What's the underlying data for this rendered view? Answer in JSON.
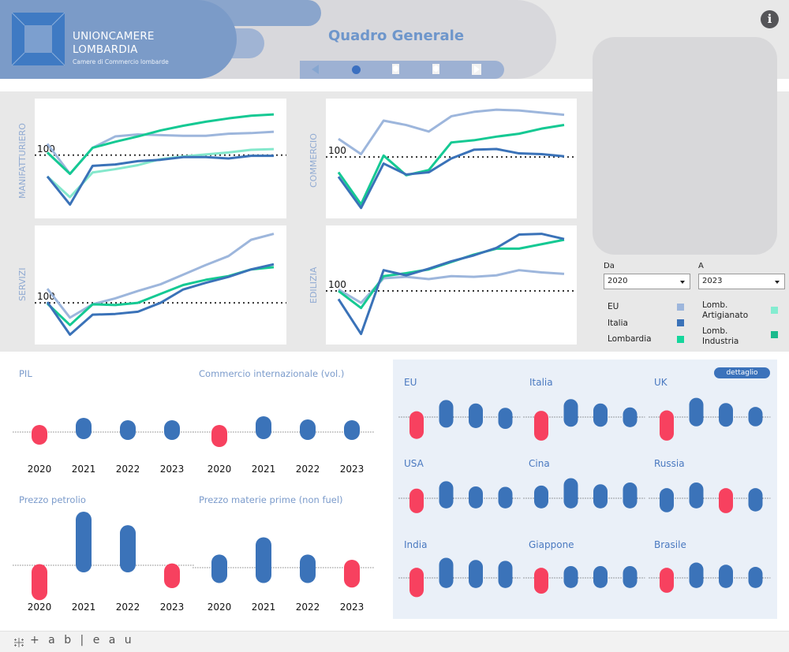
{
  "header": {
    "logo_line1": "UNIONCAMERE",
    "logo_line2": "LOMBARDIA",
    "logo_subtitle": "Camere di Commercio lombarde",
    "title": "Quadro Generale",
    "nav": {
      "prev_icon": "triangle-left",
      "next_icon": "triangle-right",
      "pages": 3,
      "active_page": 1
    },
    "info_icon": "info-circle"
  },
  "colors": {
    "eu": "#9db6dc",
    "italia": "#3a72b8",
    "lombardia": "#15c993",
    "lomb_artigianato": "#84e8cc",
    "lomb_industria": "#1bba8d",
    "negative": "#f7415f",
    "positive": "#3b73b9",
    "accent_title": "#6e96cb"
  },
  "filters": {
    "from_label": "Da",
    "from_value": "2020",
    "to_label": "A",
    "to_value": "2023"
  },
  "legend": [
    {
      "label": "EU",
      "color_key": "eu"
    },
    {
      "label": "Italia",
      "color_key": "italia"
    },
    {
      "label": "Lombardia",
      "color_key": "lombardia"
    },
    {
      "label": "Lomb. Artigianato",
      "color_key": "lomb_artigianato"
    },
    {
      "label": "Lomb. Industria",
      "color_key": "lomb_industria"
    }
  ],
  "bottom": {
    "detail_button": "dettaglio"
  },
  "footer": {
    "brand": "+ a b | e a u"
  },
  "chart_data": [
    {
      "type": "line",
      "title": "MANIFATTURIERO",
      "ylabel": "MANIFATTURIERO",
      "reference_line": 100,
      "reference_label": "100",
      "ylim": [
        55,
        140
      ],
      "series": [
        {
          "name": "EU",
          "color_key": "eu",
          "values": [
            108.5,
            86,
            105.5,
            114,
            115.5,
            115,
            114.5,
            114.5,
            116,
            116.5,
            117.5
          ]
        },
        {
          "name": "Lomb. Artigianato",
          "color_key": "lomb_artigianato",
          "values": [
            84,
            68.5,
            87,
            89.5,
            92.5,
            97,
            99,
            100.5,
            102,
            104,
            104.5
          ]
        },
        {
          "name": "Italia",
          "color_key": "italia",
          "values": [
            84,
            63,
            92,
            93,
            95.5,
            96.5,
            98.5,
            98.5,
            97.5,
            99.5,
            99.5
          ]
        },
        {
          "name": "Lombardia",
          "color_key": "lombardia",
          "values": [
            102,
            86,
            105.5,
            110,
            114,
            118.5,
            122,
            125,
            127.5,
            129.5,
            130.5
          ]
        }
      ]
    },
    {
      "type": "line",
      "title": "COMMERCIO",
      "ylabel": "COMMERCIO",
      "reference_line": 100,
      "reference_label": "100",
      "ylim": [
        60,
        138
      ],
      "series": [
        {
          "name": "EU",
          "color_key": "eu",
          "values": [
            112.5,
            102,
            125,
            122,
            117.5,
            128,
            131,
            132.5,
            132,
            130.5,
            129
          ]
        },
        {
          "name": "Lombardia",
          "color_key": "lombardia",
          "values": [
            89.5,
            67.5,
            101,
            87.5,
            91,
            110,
            111.5,
            114,
            116,
            119.5,
            122
          ]
        },
        {
          "name": "Italia",
          "color_key": "italia",
          "values": [
            86.5,
            65,
            95.5,
            88,
            89.5,
            99,
            105,
            105.5,
            102.5,
            102,
            100.5
          ]
        }
      ]
    },
    {
      "type": "line",
      "title": "SERVIZI",
      "ylabel": "SERVIZI",
      "reference_line": 100,
      "reference_label": "100",
      "ylim": [
        74,
        150
      ],
      "series": [
        {
          "name": "EU",
          "color_key": "eu",
          "values": [
            109.5,
            90,
            99,
            103,
            108,
            112.5,
            119,
            125.5,
            131.5,
            142.5,
            146.5
          ]
        },
        {
          "name": "Lombardia",
          "color_key": "lombardia",
          "values": [
            99.5,
            85,
            99,
            98.5,
            100,
            106,
            112,
            115.5,
            118,
            122.5,
            124
          ]
        },
        {
          "name": "Italia",
          "color_key": "italia",
          "values": [
            100.5,
            78.5,
            92,
            92.5,
            94,
            100,
            109,
            113.5,
            117.5,
            122.5,
            126
          ]
        }
      ]
    },
    {
      "type": "line",
      "title": "EDILIZIA",
      "ylabel": "EDILIZIA",
      "reference_line": 100,
      "reference_label": "100",
      "ylim": [
        66,
        142
      ],
      "series": [
        {
          "name": "EU",
          "color_key": "eu",
          "values": [
            101,
            92,
            108.5,
            109.5,
            108,
            110,
            109.5,
            110.5,
            114,
            112.5,
            111.5
          ]
        },
        {
          "name": "Lombardia",
          "color_key": "lombardia",
          "values": [
            100,
            88.5,
            110,
            112,
            114.5,
            119.5,
            124.5,
            128.5,
            128.5,
            131.5,
            134.5
          ]
        },
        {
          "name": "Italia",
          "color_key": "italia",
          "values": [
            94.5,
            71,
            114,
            110.5,
            115,
            120,
            124,
            129,
            138,
            138.5,
            135
          ]
        }
      ]
    },
    {
      "type": "range-dot",
      "title": "PIL",
      "categories": [
        "2020",
        "2021",
        "2022",
        "2023"
      ],
      "ranges": [
        [
          -6,
          -1
        ],
        [
          1,
          8
        ],
        [
          0,
          5
        ],
        [
          0,
          5
        ]
      ]
    },
    {
      "type": "range-dot",
      "title": "Commercio internazionale (vol.)",
      "categories": [
        "2020",
        "2021",
        "2022",
        "2023"
      ],
      "ranges": [
        [
          -9,
          -1
        ],
        [
          1,
          10
        ],
        [
          0,
          6
        ],
        [
          0,
          5
        ]
      ]
    },
    {
      "type": "range-dot",
      "title": "Prezzo petrolio",
      "categories": [
        "2020",
        "2021",
        "2022",
        "2023"
      ],
      "ranges": [
        [
          -36,
          -9
        ],
        [
          1,
          61
        ],
        [
          1,
          43
        ],
        [
          -20,
          -8
        ]
      ]
    },
    {
      "type": "range-dot",
      "title": "Prezzo materie prime (non fuel)",
      "categories": [
        "2020",
        "2021",
        "2022",
        "2023"
      ],
      "ranges": [
        [
          -10,
          7
        ],
        [
          -10,
          30
        ],
        [
          -10,
          7
        ],
        [
          -16,
          0
        ]
      ]
    },
    {
      "type": "range-dot",
      "title": "EU",
      "categories": [
        "2020",
        "2021",
        "2022",
        "2023"
      ],
      "ranges": [
        [
          -34,
          -3
        ],
        [
          -8,
          23
        ],
        [
          -9,
          15
        ],
        [
          -11,
          5
        ]
      ]
    },
    {
      "type": "range-dot",
      "title": "Italia",
      "categories": [
        "2020",
        "2021",
        "2022",
        "2023"
      ],
      "ranges": [
        [
          -38,
          -2
        ],
        [
          -6,
          25
        ],
        [
          -6,
          15
        ],
        [
          -7,
          6
        ]
      ]
    },
    {
      "type": "range-dot",
      "title": "UK",
      "categories": [
        "2020",
        "2021",
        "2022",
        "2023"
      ],
      "ranges": [
        [
          -38,
          -1
        ],
        [
          -5,
          28
        ],
        [
          -6,
          16
        ],
        [
          -5,
          7
        ]
      ]
    },
    {
      "type": "range-dot",
      "title": "USA",
      "categories": [
        "2020",
        "2021",
        "2022",
        "2023"
      ],
      "ranges": [
        [
          -18,
          6
        ],
        [
          -7,
          23
        ],
        [
          -7,
          11
        ],
        [
          -7,
          10
        ]
      ]
    },
    {
      "type": "range-dot",
      "title": "Cina",
      "categories": [
        "2020",
        "2021",
        "2022",
        "2023"
      ],
      "ranges": [
        [
          -7,
          13
        ],
        [
          -7,
          30
        ],
        [
          -7,
          16
        ],
        [
          -7,
          20
        ]
      ]
    },
    {
      "type": "range-dot",
      "title": "Russia",
      "categories": [
        "2020",
        "2021",
        "2022",
        "2023"
      ],
      "ranges": [
        [
          -16,
          7
        ],
        [
          -7,
          20
        ],
        [
          -18,
          7
        ],
        [
          -14,
          7
        ]
      ]
    },
    {
      "type": "range-dot",
      "title": "India",
      "categories": [
        "2020",
        "2021",
        "2022",
        "2023"
      ],
      "ranges": [
        [
          -28,
          7
        ],
        [
          -7,
          30
        ],
        [
          -7,
          25
        ],
        [
          -7,
          23
        ]
      ]
    },
    {
      "type": "range-dot",
      "title": "Giappone",
      "categories": [
        "2020",
        "2021",
        "2022",
        "2023"
      ],
      "ranges": [
        [
          -20,
          7
        ],
        [
          -7,
          11
        ],
        [
          -7,
          11
        ],
        [
          -7,
          11
        ]
      ]
    },
    {
      "type": "range-dot",
      "title": "Brasile",
      "categories": [
        "2020",
        "2021",
        "2022",
        "2023"
      ],
      "ranges": [
        [
          -18,
          7
        ],
        [
          -7,
          19
        ],
        [
          -7,
          14
        ],
        [
          -7,
          9
        ]
      ]
    }
  ]
}
